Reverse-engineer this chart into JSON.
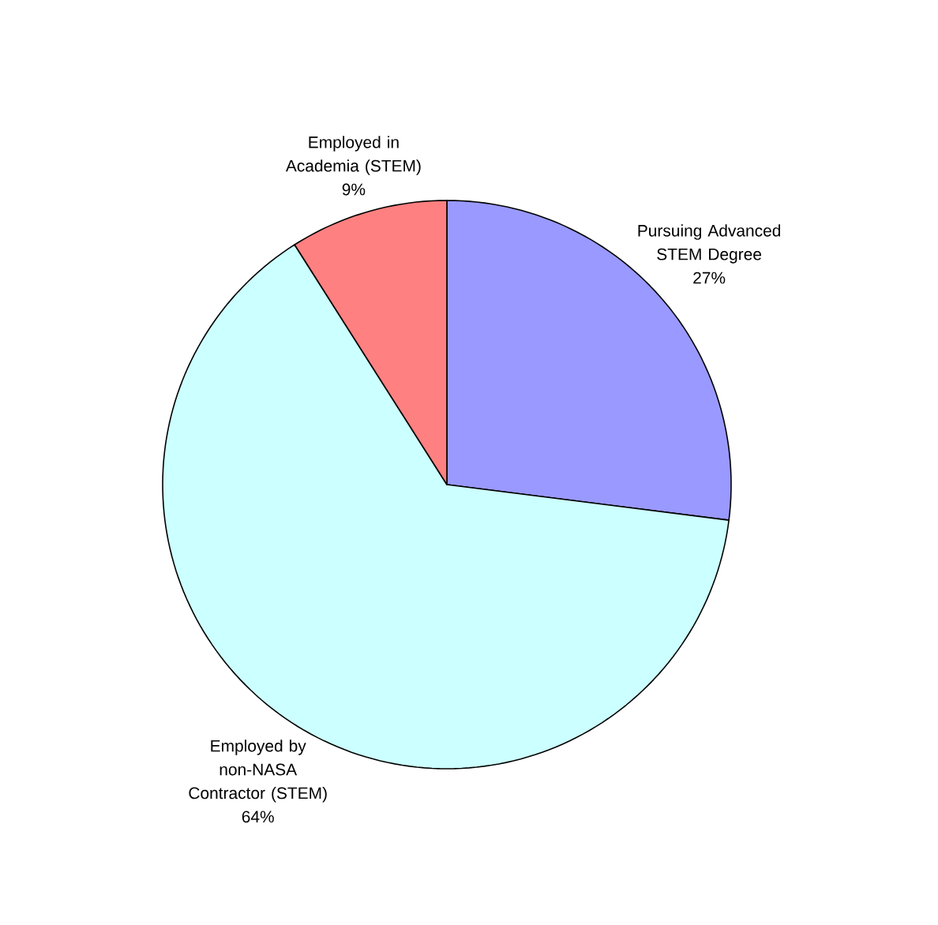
{
  "chart_data": {
    "type": "pie",
    "categories": [
      "Pursuing Advanced STEM Degree",
      "Employed by non-NASA Contractor (STEM)",
      "Employed in Academia (STEM)"
    ],
    "values": [
      27,
      64,
      9
    ],
    "value_labels": [
      "27%",
      "64%",
      "9%"
    ],
    "colors": [
      "#9999ff",
      "#ccffff",
      "#ff8080"
    ],
    "legend": false
  }
}
